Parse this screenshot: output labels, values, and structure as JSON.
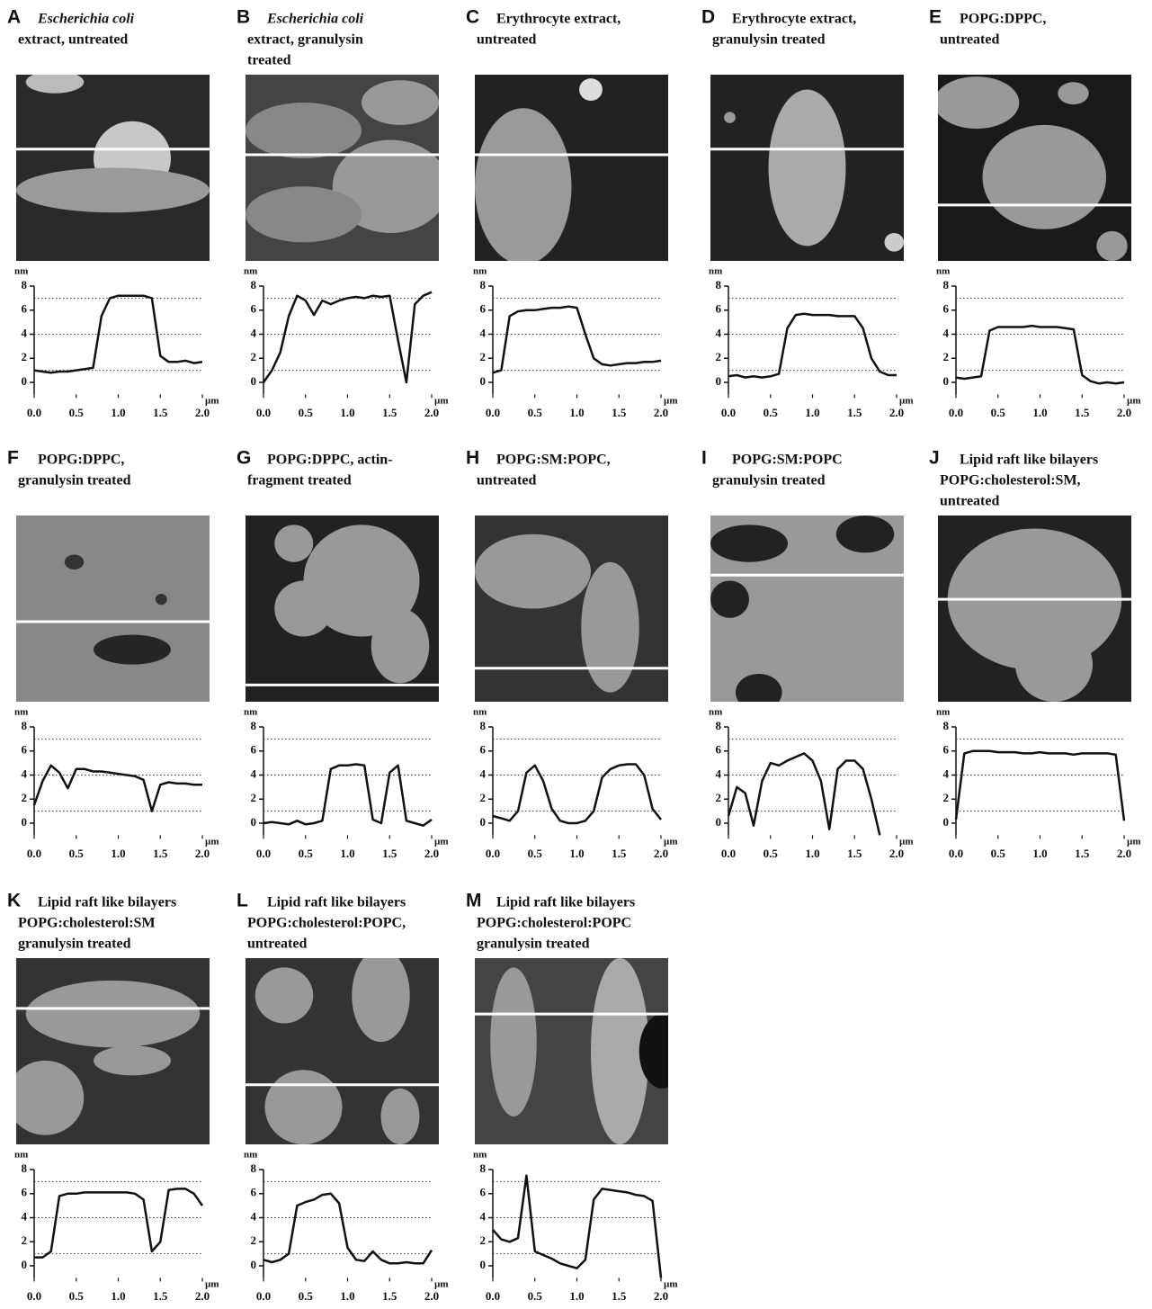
{
  "chart_data": [
    {
      "type": "line",
      "panel": "A",
      "title": [
        "Escherichia coli",
        "extract, untreated"
      ],
      "italic": [
        0
      ],
      "y_label": "nm",
      "x_label": "µm",
      "x": [
        0,
        0.1,
        0.2,
        0.3,
        0.4,
        0.5,
        0.6,
        0.7,
        0.8,
        0.9,
        1.0,
        1.1,
        1.2,
        1.3,
        1.4,
        1.5,
        1.6,
        1.7,
        1.8,
        1.9,
        2.0
      ],
      "values": [
        1.0,
        0.9,
        0.8,
        0.9,
        0.9,
        1.0,
        1.1,
        1.2,
        5.5,
        7.0,
        7.2,
        7.2,
        7.2,
        7.2,
        7.0,
        2.2,
        1.7,
        1.7,
        1.8,
        1.6,
        1.7
      ],
      "xlim": [
        0,
        2
      ],
      "ylim": [
        -1,
        8
      ],
      "xticks": [
        {
          "value": 0,
          "label": "0.0"
        },
        {
          "value": 0.5,
          "label": "0.5"
        },
        {
          "value": 1,
          "label": "1.0"
        },
        {
          "value": 1.5,
          "label": "1.5"
        },
        {
          "value": 2,
          "label": "2.0"
        }
      ],
      "yticks": [
        0,
        2,
        4,
        6,
        8
      ],
      "dotted_lines": [
        1,
        4,
        7
      ],
      "color": "#111111"
    },
    {
      "type": "line",
      "panel": "B",
      "title": [
        "Escherichia coli",
        "extract, granulysin",
        "treated"
      ],
      "italic": [
        0
      ],
      "y_label": "nm",
      "x_label": "µm",
      "x": [
        0,
        0.1,
        0.2,
        0.3,
        0.4,
        0.5,
        0.6,
        0.7,
        0.8,
        0.9,
        1.0,
        1.1,
        1.2,
        1.3,
        1.4,
        1.5,
        1.6,
        1.7,
        1.8,
        1.9,
        2.0
      ],
      "values": [
        0,
        1.0,
        2.5,
        5.5,
        7.2,
        6.8,
        5.6,
        6.8,
        6.5,
        6.8,
        7.0,
        7.1,
        7.0,
        7.2,
        7.1,
        7.2,
        3.5,
        0.0,
        6.5,
        7.2,
        7.5
      ],
      "xlim": [
        0,
        2
      ],
      "ylim": [
        -1,
        8
      ],
      "xticks": [
        {
          "value": 0,
          "label": "0.0"
        },
        {
          "value": 0.5,
          "label": "0.5"
        },
        {
          "value": 1,
          "label": "1.0"
        },
        {
          "value": 1.5,
          "label": "1.5"
        },
        {
          "value": 2,
          "label": "2.0"
        }
      ],
      "yticks": [
        0,
        2,
        4,
        6,
        8
      ],
      "dotted_lines": [
        1,
        4,
        7
      ],
      "color": "#111111"
    },
    {
      "type": "line",
      "panel": "C",
      "title": [
        "Erythrocyte extract,",
        "untreated"
      ],
      "italic": [],
      "y_label": "nm",
      "x_label": "µm",
      "x": [
        0,
        0.1,
        0.2,
        0.3,
        0.4,
        0.5,
        0.6,
        0.7,
        0.8,
        0.9,
        1.0,
        1.1,
        1.2,
        1.3,
        1.4,
        1.5,
        1.6,
        1.7,
        1.8,
        1.9,
        2.0
      ],
      "values": [
        0.8,
        1.0,
        5.5,
        5.9,
        6.0,
        6.0,
        6.1,
        6.2,
        6.2,
        6.3,
        6.2,
        4.0,
        2.0,
        1.5,
        1.4,
        1.5,
        1.6,
        1.6,
        1.7,
        1.7,
        1.8
      ],
      "xlim": [
        0,
        2
      ],
      "ylim": [
        -1,
        8
      ],
      "xticks": [
        {
          "value": 0,
          "label": "0.0"
        },
        {
          "value": 0.5,
          "label": "0.5"
        },
        {
          "value": 1,
          "label": "1.0"
        },
        {
          "value": 1.5,
          "label": "1.5"
        },
        {
          "value": 2,
          "label": "2.0"
        }
      ],
      "yticks": [
        0,
        2,
        4,
        6,
        8
      ],
      "dotted_lines": [
        1,
        4,
        7
      ],
      "color": "#111111"
    },
    {
      "type": "line",
      "panel": "D",
      "title": [
        "Erythrocyte extract,",
        "granulysin treated"
      ],
      "italic": [],
      "y_label": "nm",
      "x_label": "µm",
      "x": [
        0,
        0.1,
        0.2,
        0.3,
        0.4,
        0.5,
        0.6,
        0.7,
        0.8,
        0.9,
        1.0,
        1.1,
        1.2,
        1.3,
        1.4,
        1.5,
        1.6,
        1.7,
        1.8,
        1.9,
        2.0
      ],
      "values": [
        0.5,
        0.6,
        0.4,
        0.5,
        0.4,
        0.5,
        0.7,
        4.5,
        5.6,
        5.7,
        5.6,
        5.6,
        5.6,
        5.5,
        5.5,
        5.5,
        4.5,
        2.0,
        0.9,
        0.6,
        0.6
      ],
      "xlim": [
        0,
        2
      ],
      "ylim": [
        -1,
        8
      ],
      "xticks": [
        {
          "value": 0,
          "label": "0.0"
        },
        {
          "value": 0.5,
          "label": "0.5"
        },
        {
          "value": 1,
          "label": "1.0"
        },
        {
          "value": 1.5,
          "label": "1.5"
        },
        {
          "value": 2,
          "label": "2.0"
        }
      ],
      "yticks": [
        0,
        2,
        4,
        6,
        8
      ],
      "dotted_lines": [
        1,
        4,
        7
      ],
      "color": "#111111"
    },
    {
      "type": "line",
      "panel": "E",
      "title": [
        "POPG:DPPC,",
        "untreated"
      ],
      "italic": [],
      "y_label": "nm",
      "x_label": "µm",
      "x": [
        0,
        0.1,
        0.2,
        0.3,
        0.4,
        0.5,
        0.6,
        0.7,
        0.8,
        0.9,
        1.0,
        1.1,
        1.2,
        1.3,
        1.4,
        1.5,
        1.6,
        1.7,
        1.8,
        1.9,
        2.0
      ],
      "values": [
        0.4,
        0.3,
        0.4,
        0.5,
        4.3,
        4.6,
        4.6,
        4.6,
        4.6,
        4.7,
        4.6,
        4.6,
        4.6,
        4.5,
        4.4,
        0.6,
        0.1,
        -0.1,
        0.0,
        -0.1,
        0.0
      ],
      "xlim": [
        0,
        2
      ],
      "ylim": [
        -1,
        8
      ],
      "xticks": [
        {
          "value": 0,
          "label": "0.0"
        },
        {
          "value": 0.5,
          "label": "0.5"
        },
        {
          "value": 1,
          "label": "1.0"
        },
        {
          "value": 1.5,
          "label": "1.5"
        },
        {
          "value": 2,
          "label": "2.0"
        }
      ],
      "yticks": [
        0,
        2,
        4,
        6,
        8
      ],
      "dotted_lines": [
        1,
        4,
        7
      ],
      "color": "#111111"
    },
    {
      "type": "line",
      "panel": "F",
      "title": [
        "POPG:DPPC,",
        "granulysin treated"
      ],
      "italic": [],
      "y_label": "nm",
      "x_label": "µm",
      "x": [
        0,
        0.1,
        0.2,
        0.3,
        0.4,
        0.5,
        0.6,
        0.7,
        0.8,
        0.9,
        1.0,
        1.1,
        1.2,
        1.3,
        1.4,
        1.5,
        1.6,
        1.7,
        1.8,
        1.9,
        2.0
      ],
      "values": [
        1.5,
        3.5,
        4.8,
        4.2,
        2.9,
        4.5,
        4.5,
        4.3,
        4.3,
        4.2,
        4.1,
        4.0,
        3.9,
        3.6,
        1.0,
        3.2,
        3.4,
        3.3,
        3.3,
        3.2,
        3.2
      ],
      "xlim": [
        0,
        2
      ],
      "ylim": [
        -1,
        8
      ],
      "xticks": [
        {
          "value": 0,
          "label": "0.0"
        },
        {
          "value": 0.5,
          "label": "0.5"
        },
        {
          "value": 1,
          "label": "1.0"
        },
        {
          "value": 1.5,
          "label": "1.5"
        },
        {
          "value": 2,
          "label": "2.0"
        }
      ],
      "yticks": [
        0,
        2,
        4,
        6,
        8
      ],
      "dotted_lines": [
        1,
        4,
        7
      ],
      "color": "#111111"
    },
    {
      "type": "line",
      "panel": "G",
      "title": [
        "POPG:DPPC, actin-",
        "fragment treated"
      ],
      "italic": [],
      "y_label": "nm",
      "x_label": "µm",
      "x": [
        0,
        0.1,
        0.2,
        0.3,
        0.4,
        0.5,
        0.6,
        0.7,
        0.8,
        0.9,
        1.0,
        1.1,
        1.2,
        1.3,
        1.4,
        1.5,
        1.6,
        1.7,
        1.8,
        1.9,
        2.0
      ],
      "values": [
        0.0,
        0.1,
        0.0,
        -0.1,
        0.2,
        -0.1,
        0.0,
        0.2,
        4.5,
        4.8,
        4.8,
        4.9,
        4.8,
        0.3,
        0.0,
        4.2,
        4.8,
        0.2,
        0.0,
        -0.2,
        0.3
      ],
      "xlim": [
        0,
        2
      ],
      "ylim": [
        -1,
        8
      ],
      "xticks": [
        {
          "value": 0,
          "label": "0.0"
        },
        {
          "value": 0.5,
          "label": "0.5"
        },
        {
          "value": 1,
          "label": "1.0"
        },
        {
          "value": 1.5,
          "label": "1.5"
        },
        {
          "value": 2,
          "label": "2.0"
        }
      ],
      "yticks": [
        0,
        2,
        4,
        6,
        8
      ],
      "dotted_lines": [
        1,
        4,
        7
      ],
      "color": "#111111"
    },
    {
      "type": "line",
      "panel": "H",
      "title": [
        "POPG:SM:POPC,",
        "untreated"
      ],
      "italic": [],
      "y_label": "nm",
      "x_label": "µm",
      "x": [
        0,
        0.1,
        0.2,
        0.3,
        0.4,
        0.5,
        0.6,
        0.7,
        0.8,
        0.9,
        1.0,
        1.1,
        1.2,
        1.3,
        1.4,
        1.5,
        1.6,
        1.7,
        1.8,
        1.9,
        2.0
      ],
      "values": [
        0.6,
        0.4,
        0.2,
        1.0,
        4.2,
        4.8,
        3.5,
        1.2,
        0.2,
        0.0,
        0.0,
        0.2,
        1.0,
        3.8,
        4.5,
        4.8,
        4.9,
        4.9,
        4.0,
        1.2,
        0.3
      ],
      "xlim": [
        0,
        2
      ],
      "ylim": [
        -1,
        8
      ],
      "xticks": [
        {
          "value": 0,
          "label": "0.0"
        },
        {
          "value": 0.5,
          "label": "0.5"
        },
        {
          "value": 1,
          "label": "1.0"
        },
        {
          "value": 1.5,
          "label": "1.5"
        },
        {
          "value": 2,
          "label": "2.0"
        }
      ],
      "yticks": [
        0,
        2,
        4,
        6,
        8
      ],
      "dotted_lines": [
        1,
        4,
        7
      ],
      "color": "#111111"
    },
    {
      "type": "line",
      "panel": "I",
      "title": [
        "POPG:SM:POPC",
        "granulysin treated"
      ],
      "italic": [],
      "y_label": "nm",
      "x_label": "µm",
      "x": [
        0,
        0.1,
        0.2,
        0.3,
        0.4,
        0.5,
        0.6,
        0.7,
        0.8,
        0.9,
        1.0,
        1.1,
        1.2,
        1.3,
        1.4,
        1.5,
        1.6,
        1.7,
        1.8,
        1.9,
        2.0
      ],
      "values": [
        0.6,
        3.0,
        2.5,
        -0.2,
        3.5,
        5.0,
        4.8,
        5.2,
        5.5,
        5.8,
        5.2,
        3.5,
        -0.5,
        4.5,
        5.2,
        5.2,
        4.5,
        2.0,
        -1.0,
        null,
        null
      ],
      "xlim": [
        0,
        2
      ],
      "ylim": [
        -1,
        8
      ],
      "xticks": [
        {
          "value": 0,
          "label": "0.0"
        },
        {
          "value": 0.5,
          "label": "0.5"
        },
        {
          "value": 1,
          "label": "1.0"
        },
        {
          "value": 1.5,
          "label": "1.5"
        },
        {
          "value": 2,
          "label": "2.0"
        }
      ],
      "yticks": [
        0,
        2,
        4,
        6,
        8
      ],
      "dotted_lines": [
        1,
        4,
        7
      ],
      "color": "#111111"
    },
    {
      "type": "line",
      "panel": "J",
      "title": [
        "Lipid raft like bilayers",
        "POPG:cholesterol:SM,",
        "untreated"
      ],
      "italic": [],
      "y_label": "nm",
      "x_label": "µm",
      "x": [
        0,
        0.1,
        0.2,
        0.3,
        0.4,
        0.5,
        0.6,
        0.7,
        0.8,
        0.9,
        1.0,
        1.1,
        1.2,
        1.3,
        1.4,
        1.5,
        1.6,
        1.7,
        1.8,
        1.9,
        2.0
      ],
      "values": [
        0.3,
        5.8,
        6.0,
        6.0,
        6.0,
        5.9,
        5.9,
        5.9,
        5.8,
        5.8,
        5.9,
        5.8,
        5.8,
        5.8,
        5.7,
        5.8,
        5.8,
        5.8,
        5.8,
        5.7,
        0.2
      ],
      "xlim": [
        0,
        2
      ],
      "ylim": [
        -1,
        8
      ],
      "xticks": [
        {
          "value": 0,
          "label": "0.0"
        },
        {
          "value": 0.5,
          "label": "0.5"
        },
        {
          "value": 1,
          "label": "1.0"
        },
        {
          "value": 1.5,
          "label": "1.5"
        },
        {
          "value": 2,
          "label": "2.0"
        }
      ],
      "yticks": [
        0,
        2,
        4,
        6,
        8
      ],
      "dotted_lines": [
        1,
        4,
        7
      ],
      "color": "#111111"
    },
    {
      "type": "line",
      "panel": "K",
      "title": [
        "Lipid raft like bilayers",
        "POPG:cholesterol:SM",
        "granulysin treated"
      ],
      "italic": [],
      "y_label": "nm",
      "x_label": "µm",
      "x": [
        0,
        0.1,
        0.2,
        0.3,
        0.4,
        0.5,
        0.6,
        0.7,
        0.8,
        0.9,
        1.0,
        1.1,
        1.2,
        1.3,
        1.4,
        1.5,
        1.6,
        1.7,
        1.8,
        1.9,
        2.0
      ],
      "values": [
        0.7,
        0.7,
        1.2,
        5.8,
        6.0,
        6.0,
        6.1,
        6.1,
        6.1,
        6.1,
        6.1,
        6.1,
        6.0,
        5.5,
        1.2,
        2.0,
        6.3,
        6.4,
        6.4,
        6.0,
        5.0
      ],
      "xlim": [
        0,
        2
      ],
      "ylim": [
        -1,
        8
      ],
      "xticks": [
        {
          "value": 0,
          "label": "0.0"
        },
        {
          "value": 0.5,
          "label": "0.5"
        },
        {
          "value": 1,
          "label": "1.0"
        },
        {
          "value": 1.5,
          "label": "1.5"
        },
        {
          "value": 2,
          "label": "2.0"
        }
      ],
      "yticks": [
        0,
        2,
        4,
        6,
        8
      ],
      "dotted_lines": [
        1,
        4,
        7
      ],
      "color": "#111111"
    },
    {
      "type": "line",
      "panel": "L",
      "title": [
        "Lipid raft like bilayers",
        "POPG:cholesterol:POPC,",
        "untreated"
      ],
      "italic": [],
      "y_label": "nm",
      "x_label": "µm",
      "x": [
        0,
        0.1,
        0.2,
        0.3,
        0.4,
        0.5,
        0.6,
        0.7,
        0.8,
        0.9,
        1.0,
        1.1,
        1.2,
        1.3,
        1.4,
        1.5,
        1.6,
        1.7,
        1.8,
        1.9,
        2.0
      ],
      "values": [
        0.5,
        0.3,
        0.5,
        1.0,
        5.0,
        5.3,
        5.5,
        5.9,
        6.0,
        5.2,
        1.5,
        0.5,
        0.4,
        1.2,
        0.5,
        0.2,
        0.2,
        0.3,
        0.2,
        0.2,
        1.3
      ],
      "xlim": [
        0,
        2
      ],
      "ylim": [
        -1,
        8
      ],
      "xticks": [
        {
          "value": 0,
          "label": "0.0"
        },
        {
          "value": 0.5,
          "label": "0.5"
        },
        {
          "value": 1,
          "label": "1.0"
        },
        {
          "value": 1.5,
          "label": "1.5"
        },
        {
          "value": 2,
          "label": "2.0"
        }
      ],
      "yticks": [
        0,
        2,
        4,
        6,
        8
      ],
      "dotted_lines": [
        1,
        4,
        7
      ],
      "color": "#111111"
    },
    {
      "type": "line",
      "panel": "M",
      "title": [
        "Lipid raft like bilayers",
        "POPG:cholesterol:POPC",
        "granulysin treated"
      ],
      "italic": [],
      "y_label": "nm",
      "x_label": "µm",
      "x": [
        0,
        0.1,
        0.2,
        0.3,
        0.4,
        0.5,
        0.6,
        0.7,
        0.8,
        0.9,
        1.0,
        1.1,
        1.2,
        1.3,
        1.4,
        1.5,
        1.6,
        1.7,
        1.8,
        1.9,
        2.0
      ],
      "values": [
        3.0,
        2.2,
        2.0,
        2.3,
        7.5,
        1.2,
        0.9,
        0.6,
        0.2,
        0.0,
        -0.2,
        0.5,
        5.5,
        6.4,
        6.3,
        6.2,
        6.1,
        5.9,
        5.8,
        5.4,
        -1.0
      ],
      "xlim": [
        0,
        2
      ],
      "ylim": [
        -1,
        8
      ],
      "xticks": [
        {
          "value": 0,
          "label": "0.0"
        },
        {
          "value": 0.5,
          "label": "0.5"
        },
        {
          "value": 1,
          "label": "1.0"
        },
        {
          "value": 1.5,
          "label": "1.5"
        },
        {
          "value": 2,
          "label": "2.0"
        }
      ],
      "yticks": [
        0,
        2,
        4,
        6,
        8
      ],
      "dotted_lines": [
        1,
        4,
        7
      ],
      "color": "#111111"
    }
  ]
}
